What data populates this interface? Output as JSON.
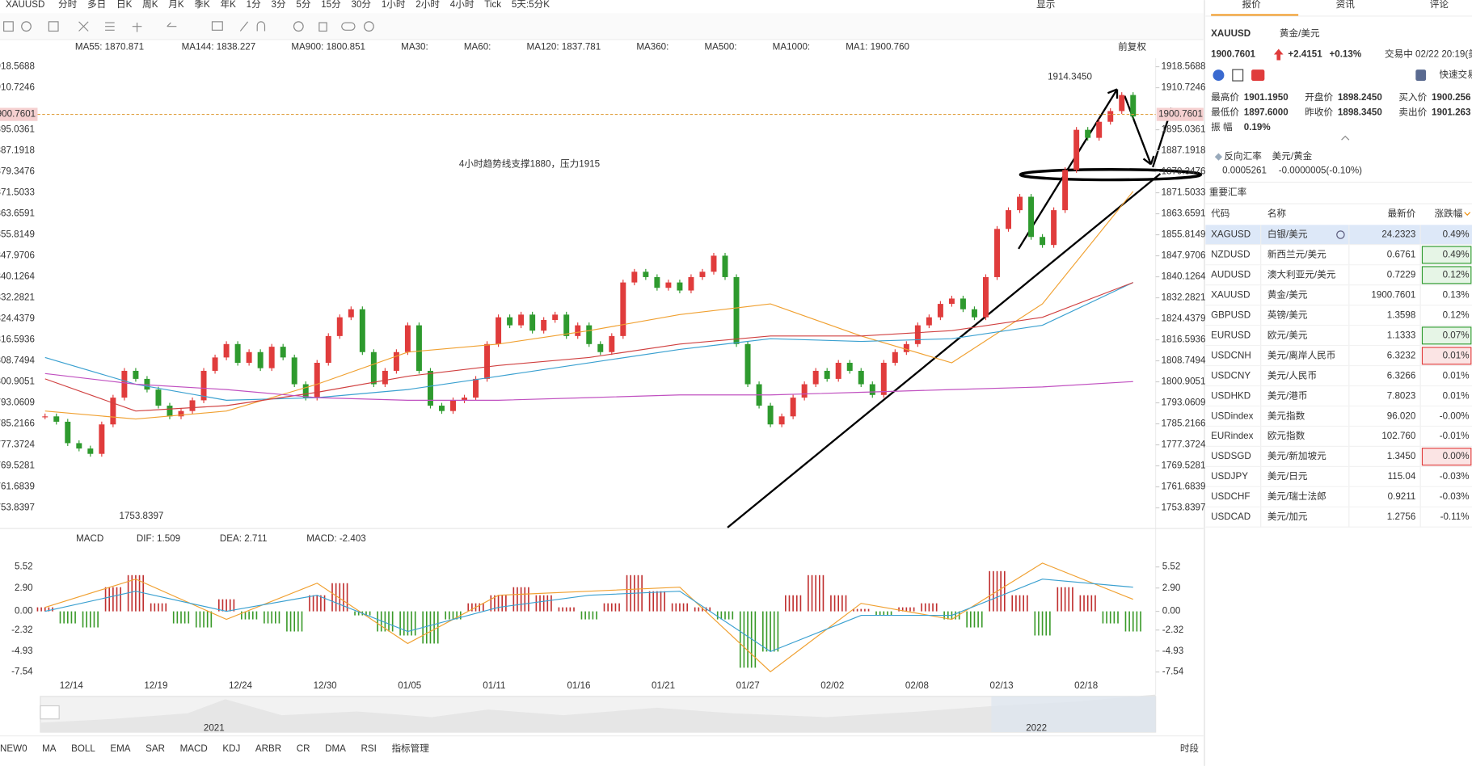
{
  "toolbar": {
    "symbol": "XAUUSD",
    "periods": [
      {
        "label": "分时"
      },
      {
        "label": "多日"
      },
      {
        "label": "日K"
      },
      {
        "label": "周K"
      },
      {
        "label": "月K"
      },
      {
        "label": "季K"
      },
      {
        "label": "年K"
      },
      {
        "label": "1分"
      },
      {
        "label": "3分"
      },
      {
        "label": "5分"
      },
      {
        "label": "15分"
      },
      {
        "label": "30分"
      },
      {
        "label": "1小时"
      },
      {
        "label": "2小时"
      },
      {
        "label": "4小时",
        "active": true
      },
      {
        "label": "Tick"
      },
      {
        "label": "5天:5分K"
      }
    ],
    "display": "显示"
  },
  "chart": {
    "legend": [
      {
        "label": "MA55: 1870.871",
        "color": "#f0a030"
      },
      {
        "label": "MA144: 1838.227",
        "color": "#3aa0d0"
      },
      {
        "label": "MA900: 1800.851",
        "color": "#d060d0"
      },
      {
        "label": "MA30:",
        "color": "#b0d0f0"
      },
      {
        "label": "MA60:",
        "color": "#b0d0f0"
      },
      {
        "label": "MA120: 1837.781",
        "color": "#d04040"
      },
      {
        "label": "MA360:",
        "color": "#b0d0f0"
      },
      {
        "label": "MA500:",
        "color": "#f0d0a0"
      },
      {
        "label": "MA1000:",
        "color": "#b0b0d0"
      },
      {
        "label": "MA1: 1900.760",
        "color": "#555555"
      }
    ],
    "adjust": "前复权",
    "ylim": [
      1746.5,
      1921.7
    ],
    "yticks": [
      {
        "value": 1918.5688,
        "label": "1918.5688"
      },
      {
        "value": 1910.7246,
        "label": "1910.7246"
      },
      {
        "value": 1895.0361,
        "label": "1895.0361"
      },
      {
        "value": 1887.1918,
        "label": "1887.1918"
      },
      {
        "value": 1879.3476,
        "label": "1879.3476"
      },
      {
        "value": 1871.5033,
        "label": "1871.5033"
      },
      {
        "value": 1863.6591,
        "label": "1863.6591"
      },
      {
        "value": 1855.8149,
        "label": "1855.8149"
      },
      {
        "value": 1847.9706,
        "label": "1847.9706"
      },
      {
        "value": 1840.1264,
        "label": "1840.1264"
      },
      {
        "value": 1832.2821,
        "label": "1832.2821"
      },
      {
        "value": 1824.4379,
        "label": "1824.4379"
      },
      {
        "value": 1816.5936,
        "label": "1816.5936"
      },
      {
        "value": 1808.7494,
        "label": "1808.7494"
      },
      {
        "value": 1800.9051,
        "label": "1800.9051"
      },
      {
        "value": 1793.0609,
        "label": "1793.0609"
      },
      {
        "value": 1785.2166,
        "label": "1785.2166"
      },
      {
        "value": 1777.3724,
        "label": "1777.3724"
      },
      {
        "value": 1769.5281,
        "label": "1769.5281"
      },
      {
        "value": 1761.6839,
        "label": "1761.6839"
      },
      {
        "value": 1753.8397,
        "label": "1753.8397"
      }
    ],
    "last_price": {
      "value": 1900.7601,
      "label": "1900.7601"
    },
    "high_mark": {
      "value": 1914.345,
      "label": "1914.3450"
    },
    "low_mark": {
      "value": 1753.8397,
      "label": "1753.8397"
    },
    "annotation": "4小时趋势线支撑1880，压力1915",
    "candles": [
      1788,
      1786,
      1778,
      1776,
      1774,
      1785,
      1795,
      1805,
      1802,
      1798,
      1792,
      1788,
      1790,
      1794,
      1805,
      1810,
      1815,
      1808,
      1812,
      1806,
      1814,
      1810,
      1800,
      1795,
      1808,
      1818,
      1825,
      1828,
      1812,
      1800,
      1805,
      1812,
      1822,
      1805,
      1792,
      1790,
      1794,
      1795,
      1802,
      1815,
      1825,
      1822,
      1826,
      1820,
      1824,
      1826,
      1818,
      1822,
      1815,
      1812,
      1818,
      1838,
      1842,
      1840,
      1836,
      1838,
      1835,
      1840,
      1842,
      1848,
      1840,
      1815,
      1800,
      1792,
      1785,
      1788,
      1795,
      1800,
      1805,
      1802,
      1808,
      1805,
      1800,
      1796,
      1808,
      1812,
      1815,
      1822,
      1825,
      1830,
      1832,
      1828,
      1825,
      1840,
      1858,
      1865,
      1870,
      1855,
      1852,
      1865,
      1880,
      1895,
      1892,
      1898,
      1902,
      1908,
      1900
    ],
    "up_color": "#e03c3c",
    "down_color": "#2e9a2e",
    "ma_lines": [
      {
        "name": "MA55",
        "color": "#f0a030",
        "values": [
          1790,
          1787,
          1790,
          1800,
          1812,
          1815,
          1820,
          1826,
          1830,
          1818,
          1808,
          1830,
          1872
        ]
      },
      {
        "name": "MA144",
        "color": "#3aa0d0",
        "values": [
          1810,
          1800,
          1794,
          1795,
          1798,
          1803,
          1808,
          1813,
          1817,
          1816,
          1817,
          1822,
          1838
        ]
      },
      {
        "name": "MA120",
        "color": "#d04040",
        "values": [
          1802,
          1790,
          1792,
          1797,
          1803,
          1807,
          1810,
          1815,
          1818,
          1818,
          1820,
          1825,
          1838
        ]
      },
      {
        "name": "MA900",
        "color": "#c050c0",
        "values": [
          1804,
          1800,
          1798,
          1795,
          1794,
          1794,
          1795,
          1796,
          1796,
          1797,
          1798,
          1799,
          1801
        ]
      }
    ],
    "dates": [
      "12/14",
      "12/19",
      "12/24",
      "12/30",
      "01/05",
      "01/11",
      "01/16",
      "01/21",
      "01/27",
      "02/02",
      "02/08",
      "02/13",
      "02/18"
    ],
    "macd": {
      "legend": [
        {
          "label": "MACD",
          "color": "#333333"
        },
        {
          "label": "DIF: 1.509",
          "color": "#f0a030"
        },
        {
          "label": "DEA: 2.711",
          "color": "#3aa0d0"
        },
        {
          "label": "MACD: -2.403",
          "color": "#c050c0"
        }
      ],
      "ylim": [
        -7.54,
        5.52
      ],
      "yticks": [
        5.52,
        {
          "value": 2.9,
          "label": "2.90"
        },
        {
          "value": 0,
          "label": "0.00"
        },
        -2.32,
        -4.93,
        -7.54
      ],
      "hist": [
        0.5,
        -1.5,
        -2,
        3,
        4.5,
        1,
        -1.5,
        -2,
        1.5,
        -1,
        -1.5,
        -2.5,
        2,
        3.5,
        -0.5,
        -2.5,
        -3,
        -4,
        -1,
        1,
        2,
        3,
        2,
        0.5,
        -1,
        1,
        4.5,
        2.5,
        1,
        0.5,
        -1,
        -7,
        -5,
        2,
        4.5,
        2,
        0.3,
        -0.5,
        0.5,
        1,
        -1,
        -2,
        5,
        2,
        -3,
        3,
        2,
        -1.5,
        -2.5
      ],
      "lines": [
        {
          "name": "DIF",
          "color": "#f0a030",
          "values": [
            0.5,
            4,
            -1,
            3.5,
            -4,
            2,
            2.5,
            3,
            -7.5,
            1,
            -1,
            6,
            1.5
          ]
        },
        {
          "name": "DEA",
          "color": "#3aa0d0",
          "values": [
            0,
            2.5,
            0,
            2,
            -2.5,
            0.5,
            2,
            2.5,
            -5,
            -0.5,
            -0.5,
            4,
            3
          ]
        }
      ]
    },
    "navigator": [
      "2021",
      "2022"
    ]
  },
  "bottom_tabs": [
    {
      "label": "NEW0"
    },
    {
      "label": "MA",
      "active": true
    },
    {
      "label": "BOLL"
    },
    {
      "label": "EMA"
    },
    {
      "label": "SAR"
    },
    {
      "label": "MACD",
      "active": true
    },
    {
      "label": "KDJ"
    },
    {
      "label": "ARBR"
    },
    {
      "label": "CR"
    },
    {
      "label": "DMA"
    },
    {
      "label": "RSI"
    },
    {
      "label": "指标管理",
      "active": true
    }
  ],
  "session": "时段",
  "panel": {
    "tabs": [
      {
        "label": "报价",
        "active": true
      },
      {
        "label": "资讯"
      },
      {
        "label": "评论"
      }
    ],
    "symbol": "XAUUSD",
    "name": "黄金/美元",
    "price": "1900.7601",
    "change": "+2.4151",
    "change_pct": "+0.13%",
    "status": "交易中 02/22 20:19(美",
    "quick_trade": "快速交易",
    "stats": [
      [
        {
          "label": "最高价",
          "value": "1901.1950",
          "color": "#e03c3c"
        },
        {
          "label": "开盘价",
          "value": "1898.2450",
          "color": "#2e9a2e"
        },
        {
          "label": "买入价",
          "value": "1900.256",
          "color": "#e03c3c"
        }
      ],
      [
        {
          "label": "最低价",
          "value": "1897.6000",
          "color": "#2e9a2e"
        },
        {
          "label": "昨收价",
          "value": "1898.3450",
          "color": "#333333"
        },
        {
          "label": "卖出价",
          "value": "1901.263",
          "color": "#e03c3c"
        }
      ],
      [
        {
          "label": "振 幅",
          "value": "0.19%",
          "color": "#333333"
        }
      ]
    ],
    "reverse": {
      "label": "反向汇率",
      "pair": "美元/黄金",
      "price": "0.0005261",
      "change": "-0.0000005(-0.10%)"
    },
    "section": "重要汇率",
    "columns": [
      "代码",
      "名称",
      "最新价",
      "涨跌幅"
    ],
    "rows": [
      {
        "code": "XAGUSD",
        "name": "白银/美元",
        "price": "24.2323",
        "change": "0.49%",
        "color": "#e03c3c",
        "selected": true
      },
      {
        "code": "NZDUSD",
        "name": "新西兰元/美元",
        "price": "0.6761",
        "change": "0.49%",
        "color": "#e03c3c",
        "change_color": "#2e9a2e",
        "box": "#2e9a2e"
      },
      {
        "code": "AUDUSD",
        "name": "澳大利亚元/美元",
        "price": "0.7229",
        "change": "0.12%",
        "color": "#e03c3c",
        "change_color": "#2e9a2e",
        "box": "#2e9a2e"
      },
      {
        "code": "XAUUSD",
        "name": "黄金/美元",
        "price": "1900.7601",
        "change": "0.13%",
        "color": "#e03c3c"
      },
      {
        "code": "GBPUSD",
        "name": "英镑/美元",
        "price": "1.3598",
        "change": "0.12%",
        "color": "#e03c3c"
      },
      {
        "code": "EURUSD",
        "name": "欧元/美元",
        "price": "1.1333",
        "change": "0.07%",
        "color": "#e03c3c",
        "change_color": "#2e9a2e",
        "box": "#2e9a2e"
      },
      {
        "code": "USDCNH",
        "name": "美元/离岸人民币",
        "price": "6.3232",
        "change": "0.01%",
        "color": "#e03c3c",
        "box": "#e03c3c"
      },
      {
        "code": "USDCNY",
        "name": "美元/人民币",
        "price": "6.3266",
        "change": "0.01%",
        "color": "#e03c3c"
      },
      {
        "code": "USDHKD",
        "name": "美元/港币",
        "price": "7.8023",
        "change": "0.01%",
        "color": "#e03c3c"
      },
      {
        "code": "USDindex",
        "name": "美元指数",
        "price": "96.020",
        "change": "-0.00%",
        "color": "#2e9a2e"
      },
      {
        "code": "EURindex",
        "name": "欧元指数",
        "price": "102.760",
        "change": "-0.01%",
        "color": "#2e9a2e"
      },
      {
        "code": "USDSGD",
        "name": "美元/新加坡元",
        "price": "1.3450",
        "change": "0.00%",
        "color": "#e03c3c",
        "box": "#e03c3c"
      },
      {
        "code": "USDJPY",
        "name": "美元/日元",
        "price": "115.04",
        "change": "-0.03%",
        "color": "#2e9a2e"
      },
      {
        "code": "USDCHF",
        "name": "美元/瑞士法郎",
        "price": "0.9211",
        "change": "-0.03%",
        "color": "#2e9a2e"
      },
      {
        "code": "USDCAD",
        "name": "美元/加元",
        "price": "1.2756",
        "change": "-0.11%",
        "color": "#2e9a2e"
      }
    ]
  }
}
